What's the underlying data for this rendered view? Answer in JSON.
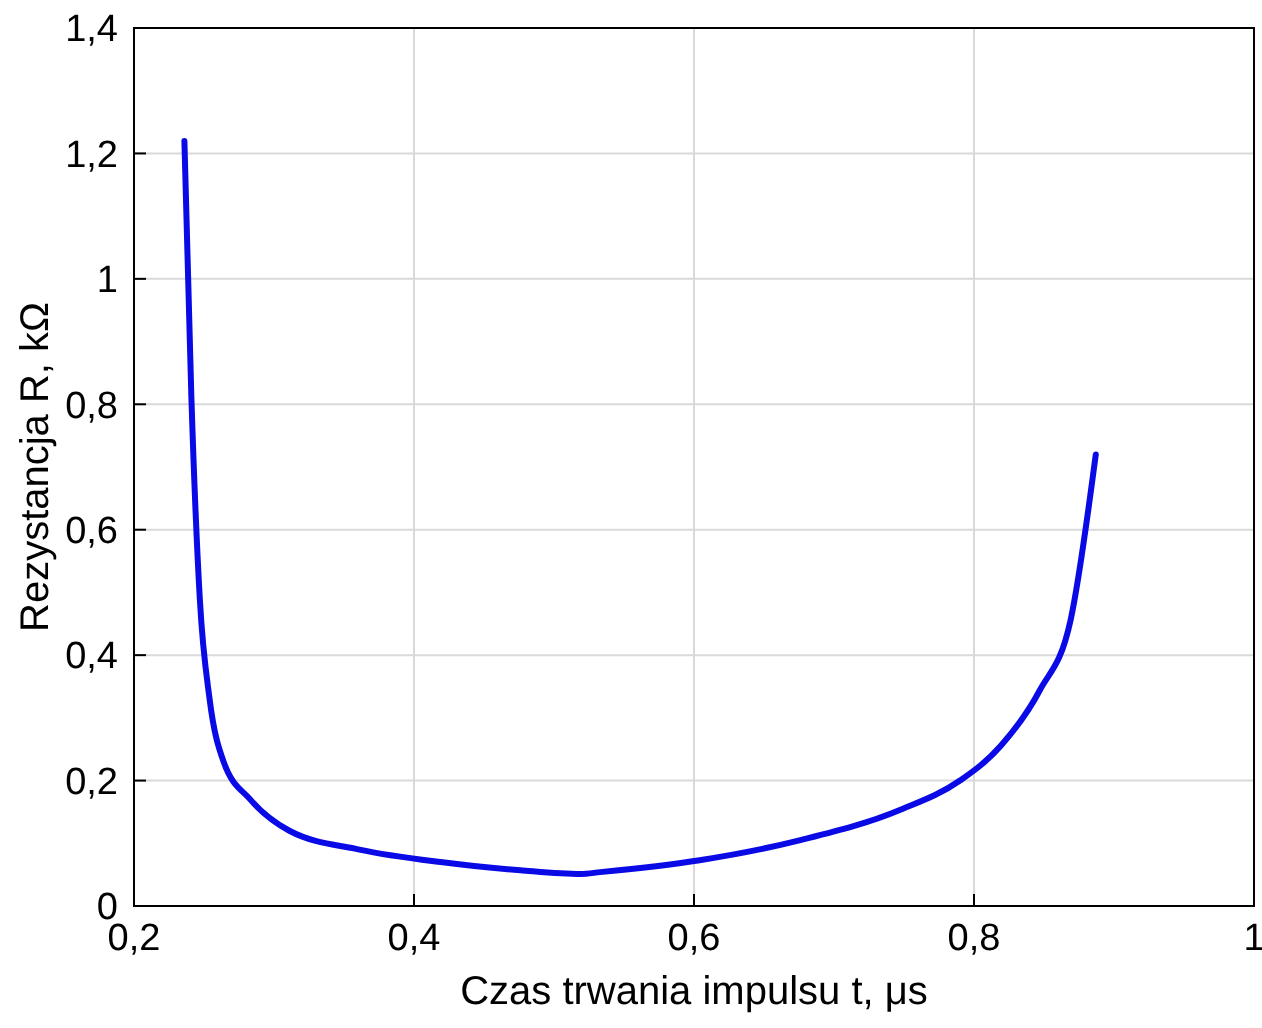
{
  "chart_data": {
    "type": "line",
    "xlabel": "Czas trwania impulsu t, μs",
    "ylabel": "Rezystancja R, kΩ",
    "xlim": [
      0.2,
      1
    ],
    "ylim": [
      0,
      1.4
    ],
    "xticks": [
      {
        "value": 0.2,
        "label": "0,2"
      },
      {
        "value": 0.4,
        "label": "0,4"
      },
      {
        "value": 0.6,
        "label": "0,6"
      },
      {
        "value": 0.8,
        "label": "0,8"
      },
      1
    ],
    "yticks": [
      0,
      {
        "value": 0.2,
        "label": "0,2"
      },
      {
        "value": 0.4,
        "label": "0,4"
      },
      {
        "value": 0.6,
        "label": "0,6"
      },
      {
        "value": 0.8,
        "label": "0,8"
      },
      1,
      {
        "value": 1.2,
        "label": "1,2"
      },
      {
        "value": 1.4,
        "label": "1,4"
      }
    ],
    "grid": true,
    "marker": "none",
    "line_style": "solid",
    "series": [
      {
        "color": "#0a0ae6",
        "x": [
          0.236,
          0.241,
          0.247,
          0.254,
          0.264,
          0.283,
          0.311,
          0.361,
          0.419,
          0.476,
          0.519,
          0.533,
          0.604,
          0.676,
          0.747,
          0.79,
          0.819,
          0.847,
          0.869,
          0.887
        ],
        "values": [
          1.22,
          0.81,
          0.49,
          0.33,
          0.23,
          0.17,
          0.12,
          0.09,
          0.07,
          0.057,
          0.051,
          0.054,
          0.073,
          0.105,
          0.153,
          0.2,
          0.255,
          0.344,
          0.456,
          0.72
        ]
      }
    ]
  }
}
